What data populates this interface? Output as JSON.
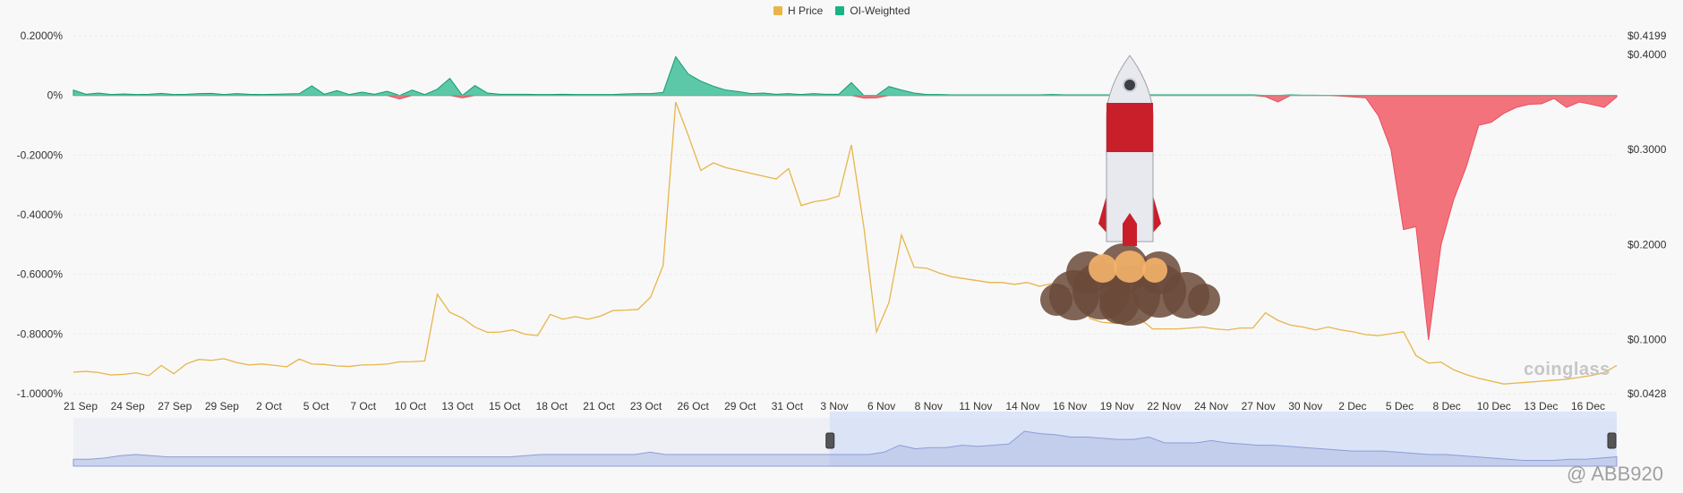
{
  "legend": [
    {
      "label": "H Price",
      "color": "#e8b54a"
    },
    {
      "label": "OI-Weighted",
      "color": "#19b384"
    }
  ],
  "watermark_text": "@ ABB920",
  "chart_data": {
    "type": "area",
    "title": "",
    "x_ticks": [
      "21 Sep",
      "24 Sep",
      "27 Sep",
      "29 Sep",
      "2 Oct",
      "5 Oct",
      "7 Oct",
      "10 Oct",
      "13 Oct",
      "15 Oct",
      "18 Oct",
      "21 Oct",
      "23 Oct",
      "26 Oct",
      "29 Oct",
      "31 Oct",
      "3 Nov",
      "6 Nov",
      "8 Nov",
      "11 Nov",
      "14 Nov",
      "16 Nov",
      "19 Nov",
      "22 Nov",
      "24 Nov",
      "27 Nov",
      "30 Nov",
      "2 Dec",
      "5 Dec",
      "8 Dec",
      "10 Dec",
      "13 Dec",
      "16 Dec"
    ],
    "y_left": {
      "label": "",
      "ticks": [
        "0.2000%",
        "0%",
        "-0.2000%",
        "-0.4000%",
        "-0.6000%",
        "-0.8000%",
        "-1.0000%"
      ],
      "range": [
        -1.0,
        0.2
      ]
    },
    "y_right": {
      "label": "",
      "ticks": [
        "$0.4199",
        "$0.4000",
        "$0.3000",
        "$0.2000",
        "$0.1000",
        "$0.0428"
      ],
      "range": [
        0.0428,
        0.4199
      ]
    },
    "series": [
      {
        "name": "H Price",
        "axis": "right",
        "color": "#e8b54a",
        "points": [
          [
            0,
            0.0655
          ],
          [
            1,
            0.0663
          ],
          [
            2,
            0.0651
          ],
          [
            3,
            0.0625
          ],
          [
            4,
            0.0632
          ],
          [
            5,
            0.0647
          ],
          [
            6,
            0.0618
          ],
          [
            7,
            0.0725
          ],
          [
            8,
            0.0638
          ],
          [
            9,
            0.0742
          ],
          [
            10,
            0.0789
          ],
          [
            11,
            0.0779
          ],
          [
            12,
            0.0797
          ],
          [
            13,
            0.0757
          ],
          [
            14,
            0.0731
          ],
          [
            15,
            0.0741
          ],
          [
            16,
            0.0727
          ],
          [
            17,
            0.0711
          ],
          [
            18,
            0.0793
          ],
          [
            19,
            0.074
          ],
          [
            20,
            0.0736
          ],
          [
            21,
            0.072
          ],
          [
            22,
            0.0715
          ],
          [
            23,
            0.0731
          ],
          [
            24,
            0.0733
          ],
          [
            25,
            0.074
          ],
          [
            26,
            0.0764
          ],
          [
            27,
            0.0765
          ],
          [
            28,
            0.0773
          ],
          [
            29,
            0.1475
          ],
          [
            30,
            0.1285
          ],
          [
            31,
            0.1225
          ],
          [
            32,
            0.113
          ],
          [
            33,
            0.1074
          ],
          [
            34,
            0.1077
          ],
          [
            35,
            0.11
          ],
          [
            36,
            0.1055
          ],
          [
            37,
            0.104
          ],
          [
            38,
            0.1263
          ],
          [
            39,
            0.1213
          ],
          [
            40,
            0.124
          ],
          [
            41,
            0.1213
          ],
          [
            42,
            0.1245
          ],
          [
            43,
            0.1304
          ],
          [
            44,
            0.1308
          ],
          [
            45,
            0.1316
          ],
          [
            46,
            0.1445
          ],
          [
            47,
            0.178
          ],
          [
            48,
            0.35
          ],
          [
            49,
            0.315
          ],
          [
            50,
            0.278
          ],
          [
            51,
            0.286
          ],
          [
            52,
            0.281
          ],
          [
            53,
            0.278
          ],
          [
            54,
            0.275
          ],
          [
            55,
            0.272
          ],
          [
            56,
            0.269
          ],
          [
            57,
            0.28
          ],
          [
            58,
            0.241
          ],
          [
            59,
            0.245
          ],
          [
            60,
            0.247
          ],
          [
            61,
            0.251
          ],
          [
            62,
            0.305
          ],
          [
            63,
            0.218
          ],
          [
            64,
            0.108
          ],
          [
            65,
            0.139
          ],
          [
            66,
            0.21
          ],
          [
            67,
            0.176
          ],
          [
            68,
            0.175
          ],
          [
            69,
            0.17
          ],
          [
            70,
            0.166
          ],
          [
            71,
            0.164
          ],
          [
            72,
            0.162
          ],
          [
            73,
            0.16
          ],
          [
            74,
            0.16
          ],
          [
            75,
            0.158
          ],
          [
            76,
            0.16
          ],
          [
            77,
            0.156
          ],
          [
            78,
            0.159
          ],
          [
            79,
            0.154
          ],
          [
            80,
            0.153
          ],
          [
            81,
            0.122
          ],
          [
            82,
            0.118
          ],
          [
            83,
            0.117
          ],
          [
            84,
            0.116
          ],
          [
            85,
            0.122
          ],
          [
            86,
            0.111
          ],
          [
            87,
            0.111
          ],
          [
            88,
            0.111
          ],
          [
            89,
            0.112
          ],
          [
            90,
            0.113
          ],
          [
            91,
            0.111
          ],
          [
            92,
            0.11
          ],
          [
            93,
            0.112
          ],
          [
            94,
            0.112
          ],
          [
            95,
            0.128
          ],
          [
            96,
            0.12
          ],
          [
            97,
            0.115
          ],
          [
            98,
            0.113
          ],
          [
            99,
            0.11
          ],
          [
            100,
            0.113
          ],
          [
            101,
            0.11
          ],
          [
            102,
            0.108
          ],
          [
            103,
            0.105
          ],
          [
            104,
            0.104
          ],
          [
            105,
            0.106
          ],
          [
            106,
            0.108
          ],
          [
            107,
            0.083
          ],
          [
            108,
            0.075
          ],
          [
            109,
            0.076
          ],
          [
            110,
            0.068
          ],
          [
            111,
            0.063
          ],
          [
            112,
            0.059
          ],
          [
            113,
            0.056
          ],
          [
            114,
            0.053
          ],
          [
            115,
            0.054
          ],
          [
            116,
            0.055
          ],
          [
            117,
            0.056
          ],
          [
            118,
            0.057
          ],
          [
            119,
            0.058
          ],
          [
            120,
            0.06
          ],
          [
            121,
            0.062
          ],
          [
            122,
            0.065
          ],
          [
            123,
            0.0725
          ]
        ]
      },
      {
        "name": "OI-Weighted",
        "axis": "left",
        "positive_color": "#19b384",
        "negative_color": "#f25c67",
        "points": [
          [
            0,
            0.018
          ],
          [
            1,
            0.004
          ],
          [
            2,
            0.008
          ],
          [
            3,
            0.003
          ],
          [
            4,
            0.005
          ],
          [
            5,
            0.003
          ],
          [
            6,
            0.004
          ],
          [
            7,
            0.007
          ],
          [
            8,
            0.003
          ],
          [
            9,
            0.004
          ],
          [
            10,
            0.006
          ],
          [
            11,
            0.007
          ],
          [
            12,
            0.003
          ],
          [
            13,
            0.006
          ],
          [
            14,
            0.004
          ],
          [
            15,
            0.003
          ],
          [
            16,
            0.004
          ],
          [
            17,
            0.005
          ],
          [
            18,
            0.006
          ],
          [
            19,
            0.032
          ],
          [
            20,
            0.004
          ],
          [
            21,
            0.016
          ],
          [
            22,
            0.003
          ],
          [
            23,
            0.011
          ],
          [
            24,
            0.004
          ],
          [
            25,
            0.014
          ],
          [
            26,
            -0.012
          ],
          [
            27,
            0.018
          ],
          [
            28,
            0.003
          ],
          [
            29,
            0.021
          ],
          [
            30,
            0.057
          ],
          [
            31,
            -0.008
          ],
          [
            32,
            0.033
          ],
          [
            33,
            0.008
          ],
          [
            34,
            0.004
          ],
          [
            35,
            0.004
          ],
          [
            36,
            0.004
          ],
          [
            37,
            0.003
          ],
          [
            38,
            0.003
          ],
          [
            39,
            0.004
          ],
          [
            40,
            0.003
          ],
          [
            41,
            0.003
          ],
          [
            42,
            0.003
          ],
          [
            43,
            0.003
          ],
          [
            44,
            0.005
          ],
          [
            45,
            0.006
          ],
          [
            46,
            0.006
          ],
          [
            47,
            0.01
          ],
          [
            48,
            0.13
          ],
          [
            49,
            0.072
          ],
          [
            50,
            0.048
          ],
          [
            51,
            0.031
          ],
          [
            52,
            0.018
          ],
          [
            53,
            0.013
          ],
          [
            54,
            0.006
          ],
          [
            55,
            0.008
          ],
          [
            56,
            0.004
          ],
          [
            57,
            0.006
          ],
          [
            58,
            0.003
          ],
          [
            59,
            0.006
          ],
          [
            60,
            0.004
          ],
          [
            61,
            0.004
          ],
          [
            62,
            0.043
          ],
          [
            63,
            -0.009
          ],
          [
            64,
            -0.008
          ],
          [
            65,
            0.03
          ],
          [
            66,
            0.018
          ],
          [
            67,
            0.008
          ],
          [
            68,
            0.003
          ],
          [
            69,
            0.003
          ],
          [
            70,
            0.002
          ],
          [
            71,
            0.002
          ],
          [
            72,
            0.002
          ],
          [
            73,
            0.002
          ],
          [
            74,
            0.002
          ],
          [
            75,
            0.002
          ],
          [
            76,
            0.002
          ],
          [
            77,
            0.002
          ],
          [
            78,
            0.003
          ],
          [
            79,
            0.002
          ],
          [
            80,
            0.002
          ],
          [
            81,
            0.002
          ],
          [
            82,
            0.002
          ],
          [
            83,
            0.002
          ],
          [
            84,
            0.002
          ],
          [
            85,
            0.002
          ],
          [
            86,
            0.002
          ],
          [
            87,
            0.002
          ],
          [
            88,
            0.002
          ],
          [
            89,
            0.002
          ],
          [
            90,
            0.002
          ],
          [
            91,
            0.002
          ],
          [
            92,
            0.002
          ],
          [
            93,
            0.002
          ],
          [
            94,
            0.002
          ],
          [
            95,
            -0.004
          ],
          [
            96,
            -0.022
          ],
          [
            97,
            0.002
          ],
          [
            98,
            0.001
          ],
          [
            99,
            0.001
          ],
          [
            100,
            0.0
          ],
          [
            101,
            -0.002
          ],
          [
            102,
            -0.005
          ],
          [
            103,
            -0.008
          ],
          [
            104,
            -0.068
          ],
          [
            105,
            -0.18
          ],
          [
            106,
            -0.45
          ],
          [
            107,
            -0.44
          ],
          [
            108,
            -0.82
          ],
          [
            109,
            -0.5
          ],
          [
            110,
            -0.35
          ],
          [
            111,
            -0.24
          ],
          [
            112,
            -0.1
          ],
          [
            113,
            -0.09
          ],
          [
            114,
            -0.06
          ],
          [
            115,
            -0.04
          ],
          [
            116,
            -0.03
          ],
          [
            117,
            -0.028
          ],
          [
            118,
            -0.01
          ],
          [
            119,
            -0.04
          ],
          [
            120,
            -0.022
          ],
          [
            121,
            -0.03
          ],
          [
            122,
            -0.04
          ],
          [
            123,
            -0.005
          ]
        ]
      }
    ],
    "navigator_series": [
      0.06,
      0.06,
      0.07,
      0.09,
      0.1,
      0.09,
      0.08,
      0.08,
      0.08,
      0.08,
      0.08,
      0.08,
      0.08,
      0.08,
      0.08,
      0.08,
      0.08,
      0.08,
      0.08,
      0.08,
      0.08,
      0.08,
      0.08,
      0.08,
      0.08,
      0.08,
      0.08,
      0.08,
      0.08,
      0.09,
      0.1,
      0.1,
      0.1,
      0.1,
      0.1,
      0.1,
      0.1,
      0.12,
      0.1,
      0.1,
      0.1,
      0.1,
      0.1,
      0.1,
      0.1,
      0.1,
      0.1,
      0.1,
      0.1,
      0.1,
      0.1,
      0.1,
      0.12,
      0.18,
      0.15,
      0.16,
      0.16,
      0.18,
      0.17,
      0.18,
      0.19,
      0.3,
      0.28,
      0.27,
      0.25,
      0.25,
      0.24,
      0.23,
      0.23,
      0.25,
      0.2,
      0.2,
      0.2,
      0.22,
      0.2,
      0.19,
      0.18,
      0.18,
      0.17,
      0.16,
      0.15,
      0.14,
      0.13,
      0.13,
      0.13,
      0.12,
      0.11,
      0.1,
      0.1,
      0.09,
      0.08,
      0.07,
      0.06,
      0.05,
      0.05,
      0.05,
      0.06,
      0.06,
      0.07,
      0.08
    ],
    "navigator_selection": [
      0.49,
      1.0
    ]
  }
}
